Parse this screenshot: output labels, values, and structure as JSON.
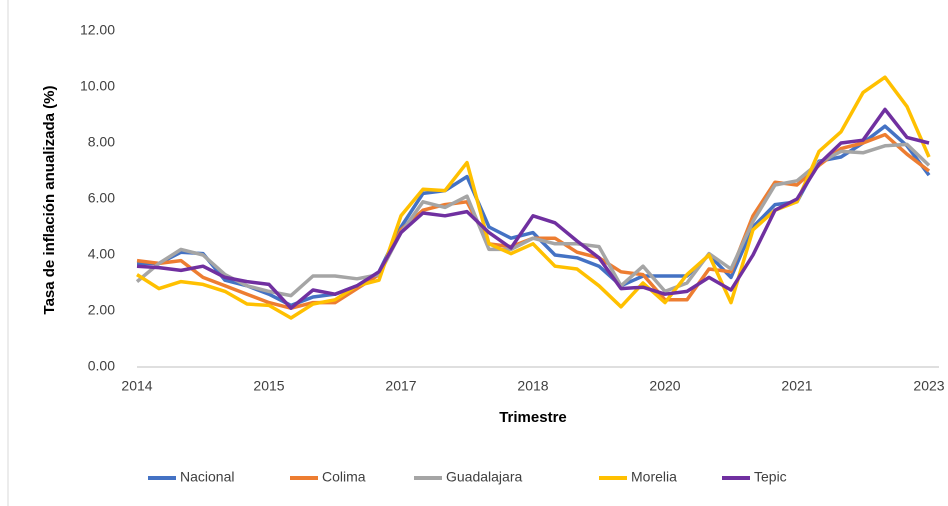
{
  "chart_data": {
    "type": "line",
    "ylabel": "Tasa de inflación anualizada (%)",
    "xlabel": "Trimestre",
    "categories": [
      "2014",
      null,
      null,
      null,
      null,
      null,
      "2015",
      null,
      null,
      null,
      null,
      null,
      "2017",
      null,
      null,
      null,
      null,
      null,
      "2018",
      null,
      null,
      null,
      null,
      null,
      "2020",
      null,
      null,
      null,
      null,
      null,
      "2021",
      null,
      null,
      null,
      null,
      null,
      "2023"
    ],
    "ylim": [
      0,
      12
    ],
    "yticks": [
      {
        "value": 0,
        "label": "0.00"
      },
      {
        "value": 2,
        "label": "2.00"
      },
      {
        "value": 4,
        "label": "4.00"
      },
      {
        "value": 6,
        "label": "6.00"
      },
      {
        "value": 8,
        "label": "8.00"
      },
      {
        "value": 10,
        "label": "10.00"
      },
      {
        "value": 12,
        "label": "12.00"
      }
    ],
    "grid": false,
    "legend": "bottom",
    "series": [
      {
        "name": "Nacional",
        "color": "#4472c4",
        "values": [
          3.7,
          3.7,
          4.1,
          4.05,
          3.1,
          2.9,
          2.6,
          2.2,
          2.5,
          2.6,
          2.9,
          3.4,
          5.0,
          6.2,
          6.3,
          6.8,
          5.0,
          4.6,
          4.8,
          4.0,
          3.9,
          3.6,
          2.9,
          3.25,
          3.25,
          3.25,
          4.0,
          3.2,
          5.0,
          5.8,
          5.9,
          7.35,
          7.5,
          8.0,
          8.6,
          7.9,
          6.85
        ]
      },
      {
        "name": "Colima",
        "color": "#ed7d31",
        "values": [
          3.8,
          3.7,
          3.8,
          3.2,
          2.9,
          2.6,
          2.3,
          2.1,
          2.3,
          2.3,
          2.8,
          3.3,
          4.9,
          5.6,
          5.8,
          5.9,
          4.4,
          4.3,
          4.6,
          4.6,
          4.1,
          3.9,
          3.4,
          3.3,
          2.4,
          2.4,
          3.5,
          3.4,
          5.4,
          6.6,
          6.5,
          7.2,
          7.8,
          8.0,
          8.3,
          7.6,
          7.0
        ]
      },
      {
        "name": "Guadalajara",
        "color": "#a5a5a5",
        "values": [
          3.05,
          3.7,
          4.2,
          4.0,
          3.3,
          2.9,
          2.7,
          2.55,
          3.25,
          3.25,
          3.15,
          3.3,
          4.8,
          5.9,
          5.7,
          6.1,
          4.2,
          4.2,
          4.6,
          4.4,
          4.4,
          4.3,
          2.9,
          3.6,
          2.7,
          3.0,
          4.05,
          3.5,
          5.2,
          6.5,
          6.65,
          7.3,
          7.7,
          7.65,
          7.9,
          7.95,
          7.2
        ]
      },
      {
        "name": "Morelia",
        "color": "#ffc000",
        "values": [
          3.3,
          2.8,
          3.05,
          2.95,
          2.7,
          2.25,
          2.2,
          1.75,
          2.25,
          2.4,
          2.9,
          3.1,
          5.4,
          6.35,
          6.3,
          7.3,
          4.4,
          4.05,
          4.4,
          3.6,
          3.5,
          2.9,
          2.15,
          3.0,
          2.3,
          3.3,
          4.0,
          2.3,
          4.9,
          5.6,
          5.9,
          7.7,
          8.4,
          9.8,
          10.35,
          9.3,
          7.5
        ]
      },
      {
        "name": "Tepic",
        "color": "#7030a0",
        "values": [
          3.6,
          3.55,
          3.45,
          3.6,
          3.2,
          3.05,
          2.95,
          2.1,
          2.75,
          2.6,
          2.9,
          3.4,
          4.8,
          5.5,
          5.4,
          5.55,
          4.8,
          4.25,
          5.4,
          5.15,
          4.5,
          3.9,
          2.8,
          2.85,
          2.6,
          2.7,
          3.2,
          2.75,
          4.0,
          5.6,
          6.0,
          7.25,
          8.0,
          8.1,
          9.2,
          8.2,
          8.0
        ]
      }
    ]
  }
}
